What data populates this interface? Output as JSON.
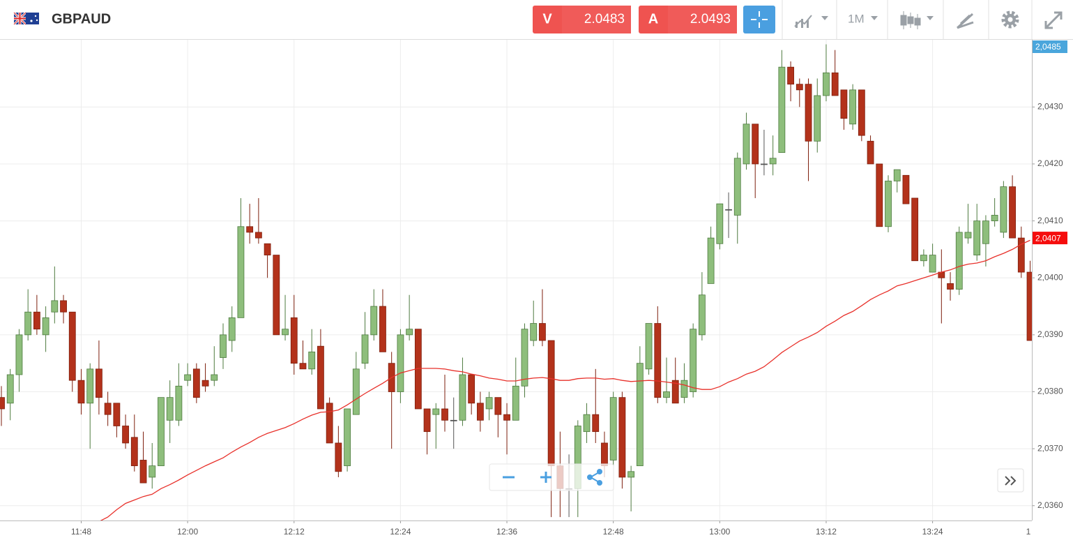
{
  "header": {
    "symbol": "GBPAUD",
    "sell_label": "V",
    "sell_price": 2.0483,
    "buy_label": "A",
    "buy_price": 2.0493,
    "timeframe": "1M"
  },
  "chart_data": {
    "type": "candlestick",
    "categories": [
      null,
      null,
      null,
      null,
      null,
      null,
      null,
      null,
      null,
      "11:48",
      null,
      null,
      null,
      null,
      null,
      null,
      null,
      null,
      null,
      null,
      null,
      "12:00",
      null,
      null,
      null,
      null,
      null,
      null,
      null,
      null,
      null,
      null,
      null,
      "12:12",
      null,
      null,
      null,
      null,
      null,
      null,
      null,
      null,
      null,
      null,
      null,
      "12:24",
      null,
      null,
      null,
      null,
      null,
      null,
      null,
      null,
      null,
      null,
      null,
      "12:36",
      null,
      null,
      null,
      null,
      null,
      null,
      null,
      null,
      null,
      null,
      null,
      "12:48",
      null,
      null,
      null,
      null,
      null,
      null,
      null,
      null,
      null,
      null,
      null,
      "13:00",
      null,
      null,
      null,
      null,
      null,
      null,
      null,
      null,
      null,
      null,
      null,
      "13:12",
      null,
      null,
      null,
      null,
      null,
      null,
      null,
      null,
      null,
      null,
      null,
      "13:24",
      null,
      null,
      null,
      null,
      null,
      null,
      null,
      null,
      null,
      null,
      null,
      "1"
    ],
    "open": [
      2.0379,
      2.0378,
      2.0383,
      2.039,
      2.0394,
      2.039,
      2.0394,
      2.0396,
      2.0394,
      2.0382,
      2.0378,
      2.0384,
      2.0378,
      2.0378,
      2.0374,
      2.0372,
      2.0368,
      2.0365,
      2.0367,
      2.0375,
      2.0375,
      2.0382,
      2.0384,
      2.0382,
      2.0382,
      2.0386,
      2.0389,
      2.0393,
      2.0409,
      2.0408,
      2.0406,
      2.0404,
      2.039,
      2.0393,
      2.0385,
      2.0384,
      2.0388,
      2.0378,
      2.0371,
      2.0367,
      2.0376,
      2.0385,
      2.039,
      2.0395,
      2.0385,
      2.038,
      2.039,
      2.0391,
      2.0377,
      2.0376,
      2.0377,
      2.0375,
      2.0375,
      2.0383,
      2.0378,
      2.0377,
      2.0379,
      2.0376,
      2.0375,
      2.0381,
      2.0389,
      2.0392,
      2.0389,
      2.0367,
      2.0363,
      2.0363,
      2.0373,
      2.0376,
      2.0371,
      2.0368,
      2.0379,
      2.0365,
      2.0367,
      2.0384,
      2.0392,
      2.0379,
      2.0382,
      2.0379,
      2.038,
      2.039,
      2.0399,
      2.0406,
      2.0412,
      2.0411,
      2.042,
      2.0427,
      2.042,
      2.042,
      2.0422,
      2.0437,
      2.0434,
      2.0434,
      2.0424,
      2.0432,
      2.0436,
      2.0433,
      2.0427,
      2.0433,
      2.0424,
      2.042,
      2.0409,
      2.0417,
      2.0418,
      2.0414,
      2.0403,
      2.0401,
      2.0401,
      2.0399,
      2.0398,
      2.0407,
      2.0404,
      2.0406,
      2.041,
      2.0408,
      2.0416,
      2.0407,
      2.0401,
      null
    ],
    "high": [
      2.0381,
      2.0384,
      2.0391,
      2.0398,
      2.0397,
      2.0395,
      2.0402,
      2.0397,
      2.0394,
      2.0384,
      2.0385,
      2.0389,
      2.038,
      2.0378,
      2.0376,
      2.0376,
      2.0373,
      2.0371,
      2.0379,
      2.0382,
      2.0385,
      2.0385,
      2.0385,
      2.0385,
      2.0388,
      2.0392,
      2.0395,
      2.0414,
      2.0413,
      2.0414,
      2.0406,
      2.0404,
      2.0397,
      2.0397,
      2.0389,
      2.0391,
      2.0391,
      2.0379,
      2.0374,
      2.0377,
      2.0387,
      2.0394,
      2.0398,
      2.0398,
      2.0387,
      2.0391,
      2.0397,
      2.0391,
      2.0377,
      2.0378,
      2.0383,
      2.0379,
      2.0386,
      2.0383,
      2.038,
      2.038,
      2.0379,
      2.0378,
      2.0386,
      2.0392,
      2.0396,
      2.0398,
      2.0389,
      2.0373,
      2.0369,
      2.0375,
      2.0378,
      2.0384,
      2.0373,
      2.038,
      2.038,
      2.0367,
      2.0388,
      2.0392,
      2.0395,
      2.0386,
      2.0386,
      2.0385,
      2.0392,
      2.0401,
      2.0409,
      2.0413,
      2.0415,
      2.0422,
      2.0429,
      2.0427,
      2.0426,
      2.0425,
      2.044,
      2.0438,
      2.0435,
      2.0435,
      2.0435,
      2.0441,
      2.044,
      2.0433,
      2.0434,
      2.0433,
      2.0425,
      2.042,
      2.0418,
      2.0419,
      2.0418,
      2.0414,
      2.0405,
      2.0406,
      2.0405,
      2.0401,
      2.0409,
      2.0413,
      2.0413,
      2.0411,
      2.0414,
      2.0417,
      2.0418,
      2.0409,
      2.0403,
      null
    ],
    "low": [
      2.0374,
      2.0375,
      2.038,
      2.0389,
      2.039,
      2.0387,
      2.0392,
      2.0392,
      2.038,
      2.0376,
      2.037,
      2.0376,
      2.0374,
      2.0372,
      2.037,
      2.0366,
      2.0364,
      2.0363,
      2.0367,
      2.0371,
      2.0374,
      2.0381,
      2.0378,
      2.038,
      2.0381,
      2.0384,
      2.0387,
      2.0393,
      2.0406,
      2.0406,
      2.04,
      2.039,
      2.0389,
      2.0383,
      2.0384,
      2.0383,
      2.0377,
      2.0371,
      2.0365,
      2.0366,
      2.0376,
      2.0384,
      2.0389,
      2.0387,
      2.037,
      2.0378,
      2.0389,
      2.0377,
      2.0369,
      2.037,
      2.0373,
      2.037,
      2.0374,
      2.0376,
      2.0373,
      2.0375,
      2.0372,
      2.0369,
      2.0375,
      2.0379,
      2.0388,
      2.0388,
      2.0358,
      2.0358,
      2.0358,
      2.0358,
      2.0371,
      2.0371,
      2.0365,
      2.0367,
      2.0363,
      2.0359,
      2.0367,
      2.0383,
      2.0378,
      2.0378,
      2.0378,
      2.0378,
      2.0379,
      2.0389,
      2.0399,
      2.0405,
      2.0407,
      2.0406,
      2.0419,
      2.0414,
      2.0418,
      2.0418,
      2.0422,
      2.0431,
      2.043,
      2.0417,
      2.0422,
      2.0431,
      2.0432,
      2.0426,
      2.0426,
      2.0424,
      2.042,
      2.0409,
      2.0408,
      2.0415,
      2.0413,
      2.0403,
      2.0402,
      2.0401,
      2.0392,
      2.0396,
      2.0397,
      2.0406,
      2.0403,
      2.0402,
      2.0409,
      2.0407,
      2.0407,
      2.04,
      2.0389,
      null
    ],
    "close": [
      2.0377,
      2.0383,
      2.039,
      2.0394,
      2.0391,
      2.0393,
      2.0396,
      2.0394,
      2.0382,
      2.0378,
      2.0384,
      2.0379,
      2.0376,
      2.0374,
      2.0371,
      2.0367,
      2.0364,
      2.0367,
      2.0379,
      2.0379,
      2.0381,
      2.0383,
      2.0379,
      2.0381,
      2.0383,
      2.039,
      2.0393,
      2.0409,
      2.0408,
      2.0407,
      2.0404,
      2.039,
      2.0391,
      2.0385,
      2.0384,
      2.0387,
      2.0377,
      2.0371,
      2.0366,
      2.0377,
      2.0384,
      2.039,
      2.0395,
      2.0387,
      2.038,
      2.039,
      2.0391,
      2.0377,
      2.0373,
      2.0377,
      2.0375,
      2.0375,
      2.0383,
      2.0378,
      2.0375,
      2.0379,
      2.0376,
      2.0375,
      2.0381,
      2.0391,
      2.0392,
      2.0389,
      2.0367,
      2.0363,
      2.0363,
      2.0374,
      2.0376,
      2.0373,
      2.0367,
      2.0379,
      2.0365,
      2.0366,
      2.0385,
      2.0392,
      2.0379,
      2.038,
      2.0378,
      2.0382,
      2.0391,
      2.0397,
      2.0407,
      2.0413,
      2.0412,
      2.0421,
      2.0427,
      2.042,
      2.042,
      2.0421,
      2.0437,
      2.0434,
      2.0433,
      2.0424,
      2.0432,
      2.0436,
      2.0432,
      2.0428,
      2.0433,
      2.0425,
      2.042,
      2.0409,
      2.0417,
      2.0419,
      2.0413,
      2.0403,
      2.0404,
      2.0404,
      2.04,
      2.0398,
      2.0408,
      2.0408,
      2.041,
      2.041,
      2.0411,
      2.0416,
      2.0407,
      2.0401,
      2.0389,
      null
    ],
    "up_color": "#8ebe7c",
    "down_color": "#b3321b",
    "moving_average": {
      "color": "#e8302a",
      "values": [
        null,
        null,
        null,
        null,
        null,
        null,
        null,
        null,
        null,
        null,
        null,
        2.03572,
        2.0358,
        2.03593,
        2.03604,
        2.0361,
        2.03616,
        2.0362,
        2.0363,
        2.03637,
        2.03645,
        2.03654,
        2.03662,
        2.0367,
        2.03677,
        2.03684,
        2.03694,
        2.03703,
        2.03711,
        2.0372,
        2.03727,
        2.03732,
        2.03737,
        2.03744,
        2.03752,
        2.03759,
        2.03764,
        2.03765,
        2.03768,
        2.03777,
        2.03787,
        2.03797,
        2.03806,
        2.03815,
        2.03825,
        2.03833,
        2.03837,
        2.03841,
        2.03841,
        2.03841,
        2.0384,
        2.03837,
        2.03835,
        2.03831,
        2.03828,
        2.03824,
        2.03822,
        2.03819,
        2.03819,
        2.03822,
        2.03824,
        2.03825,
        2.03823,
        2.0382,
        2.0382,
        2.03823,
        2.03824,
        2.03824,
        2.03822,
        2.03823,
        2.0382,
        2.03818,
        2.03819,
        2.0382,
        2.03819,
        2.03817,
        2.03815,
        2.03812,
        2.03807,
        2.03804,
        2.03804,
        2.03809,
        2.03817,
        2.03823,
        2.03831,
        2.03836,
        2.03844,
        2.03856,
        2.03869,
        2.03879,
        2.03889,
        2.03896,
        2.03904,
        2.03915,
        2.03924,
        2.03934,
        2.03941,
        2.03951,
        2.03962,
        2.0397,
        2.03977,
        2.03986,
        2.0399,
        2.03995,
        2.04,
        2.04005,
        2.0401,
        2.04014,
        2.0402,
        2.04024,
        2.04026,
        2.0403,
        2.04037,
        2.04043,
        2.0405,
        2.04059,
        2.04066,
        null
      ]
    },
    "price_markers": [
      {
        "value": 2.0485,
        "label": "2,0485",
        "color": "#4aa6dc"
      },
      {
        "value": 2.0407,
        "label": "2,0407",
        "color": "#f50d0d"
      }
    ],
    "ylim": [
      2.03574,
      2.04418
    ],
    "yticks": [
      {
        "value": 2.036,
        "label": "2,0360"
      },
      {
        "value": 2.037,
        "label": "2,0370"
      },
      {
        "value": 2.038,
        "label": "2,0380"
      },
      {
        "value": 2.039,
        "label": "2,0390"
      },
      {
        "value": 2.04,
        "label": "2,0400"
      },
      {
        "value": 2.041,
        "label": "2,0410"
      },
      {
        "value": 2.042,
        "label": "2,0420"
      },
      {
        "value": 2.043,
        "label": "2,0430"
      }
    ],
    "grid": true
  }
}
